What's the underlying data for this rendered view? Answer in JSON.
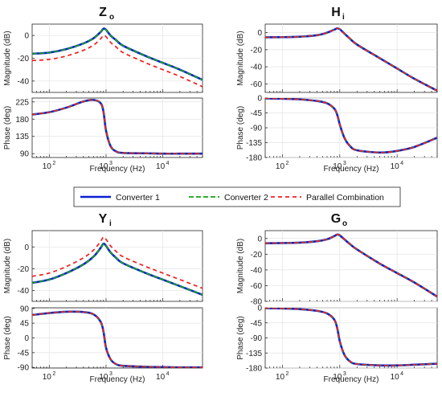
{
  "figure": {
    "legend": {
      "entries": [
        {
          "label": "Converter 1",
          "color": "#0a1fd6",
          "style": "solid"
        },
        {
          "label": "Converter 2",
          "color": "#16a316",
          "style": "dashed"
        },
        {
          "label": "Parallel Combination",
          "color": "#f02020",
          "style": "dashed"
        }
      ]
    }
  },
  "chart_data": [
    {
      "title": "Z",
      "title_sub": "o",
      "type": "line",
      "x_scale": "log",
      "x": [
        50,
        100,
        200,
        400,
        600,
        800,
        900,
        1000,
        1200,
        1500,
        2000,
        5000,
        10000,
        20000,
        50000
      ],
      "xlim": [
        50,
        50000
      ],
      "xlabel": "Frequency  (Hz)",
      "xticks": [
        100,
        1000,
        10000
      ],
      "magnitude": {
        "ylabel": "Magnitude (dB)",
        "ylim": [
          -50,
          10
        ],
        "yticks": [
          0,
          -20,
          -40
        ],
        "series": [
          {
            "name": "Converter 1",
            "values": [
              -16,
              -15,
              -12,
              -7,
              -2.5,
              3,
              6,
              5,
              0,
              -4,
              -9,
              -18,
              -24,
              -30,
              -39
            ]
          },
          {
            "name": "Converter 2",
            "values": [
              -16,
              -15,
              -12,
              -7,
              -2.5,
              3,
              6,
              5,
              0,
              -4,
              -9,
              -18,
              -24,
              -30,
              -39
            ]
          },
          {
            "name": "Parallel Combination",
            "values": [
              -22,
              -21,
              -18,
              -13,
              -8.5,
              -3,
              0,
              -1,
              -6,
              -10,
              -15,
              -24,
              -30,
              -36,
              -45
            ]
          }
        ]
      },
      "phase": {
        "ylabel": "Phase (deg)",
        "ylim": [
          80,
          235
        ],
        "yticks": [
          225,
          180,
          135,
          90
        ],
        "series": [
          {
            "name": "Converter 1",
            "values": [
              192,
              198,
              210,
              226,
              230,
              222,
              200,
              150,
              110,
              96,
              92,
              91,
              90,
              90,
              90
            ]
          },
          {
            "name": "Converter 2",
            "values": [
              192,
              198,
              210,
              226,
              230,
              222,
              200,
              150,
              110,
              96,
              92,
              91,
              90,
              90,
              90
            ]
          },
          {
            "name": "Parallel Combination",
            "values": [
              192,
              198,
              210,
              226,
              230,
              222,
              200,
              150,
              110,
              96,
              92,
              91,
              90,
              90,
              90
            ]
          }
        ]
      }
    },
    {
      "title": "H",
      "title_sub": "i",
      "type": "line",
      "x_scale": "log",
      "x": [
        50,
        100,
        200,
        400,
        600,
        800,
        900,
        1000,
        1200,
        1500,
        2000,
        5000,
        10000,
        20000,
        50000
      ],
      "xlim": [
        50,
        50000
      ],
      "xlabel": "Frequency  (Hz)",
      "xticks": [
        100,
        1000,
        10000
      ],
      "magnitude": {
        "ylabel": "Magnitude (dB)",
        "ylim": [
          -70,
          10
        ],
        "yticks": [
          0,
          -20,
          -40,
          -60
        ],
        "series": [
          {
            "name": "Converter 1",
            "values": [
              -5.5,
              -5.3,
              -4.8,
              -3,
              0,
              3.5,
              5,
              4,
              -1,
              -7,
              -14,
              -30,
              -42,
              -54,
              -68
            ]
          },
          {
            "name": "Converter 2",
            "values": [
              -5.5,
              -5.3,
              -4.8,
              -3,
              0,
              3.5,
              5,
              4,
              -1,
              -7,
              -14,
              -30,
              -42,
              -54,
              -68
            ]
          },
          {
            "name": "Parallel Combination",
            "values": [
              -5.5,
              -5.3,
              -4.8,
              -3,
              0,
              3.5,
              5,
              4,
              -1,
              -7,
              -14,
              -30,
              -42,
              -54,
              -68
            ]
          }
        ]
      },
      "phase": {
        "ylabel": "Phase (deg)",
        "ylim": [
          -180,
          0
        ],
        "yticks": [
          0,
          -45,
          -90,
          -135,
          -180
        ],
        "series": [
          {
            "name": "Converter 1",
            "values": [
              -1,
              -2,
              -4,
              -9,
              -16,
              -32,
              -50,
              -80,
              -120,
              -145,
              -158,
              -165,
              -160,
              -148,
              -120
            ]
          },
          {
            "name": "Converter 2",
            "values": [
              -1,
              -2,
              -4,
              -9,
              -16,
              -32,
              -50,
              -80,
              -120,
              -145,
              -158,
              -165,
              -160,
              -148,
              -120
            ]
          },
          {
            "name": "Parallel Combination",
            "values": [
              -1,
              -2,
              -4,
              -9,
              -16,
              -32,
              -50,
              -80,
              -120,
              -145,
              -158,
              -165,
              -160,
              -148,
              -120
            ]
          }
        ]
      }
    },
    {
      "title": "Y",
      "title_sub": "i",
      "type": "line",
      "x_scale": "log",
      "x": [
        50,
        100,
        200,
        400,
        600,
        800,
        900,
        1000,
        1200,
        1500,
        2000,
        5000,
        10000,
        20000,
        50000
      ],
      "xlim": [
        50,
        50000
      ],
      "xlabel": "Frequency  (Hz)",
      "xticks": [
        100,
        1000,
        10000
      ],
      "magnitude": {
        "ylabel": "Magnitude (dB)",
        "ylim": [
          -50,
          15
        ],
        "yticks": [
          0,
          -20,
          -40
        ],
        "series": [
          {
            "name": "Converter 1",
            "values": [
              -33,
              -30,
              -24,
              -16,
              -9,
              -1,
              3,
              1,
              -5,
              -10,
              -15,
              -24,
              -30,
              -36,
              -44
            ]
          },
          {
            "name": "Converter 2",
            "values": [
              -33,
              -30,
              -24,
              -16,
              -9,
              -1,
              3,
              1,
              -5,
              -10,
              -15,
              -24,
              -30,
              -36,
              -44
            ]
          },
          {
            "name": "Parallel Combination",
            "values": [
              -27,
              -24,
              -18,
              -10,
              -3,
              5,
              9,
              7,
              1,
              -4,
              -9,
              -18,
              -24,
              -30,
              -38
            ]
          }
        ]
      },
      "phase": {
        "ylabel": "Phase (deg)",
        "ylim": [
          -92,
          92
        ],
        "yticks": [
          90,
          45,
          0,
          -45,
          -90
        ],
        "series": [
          {
            "name": "Converter 1",
            "values": [
              70,
              76,
              80,
              79,
              72,
              50,
              20,
              -30,
              -65,
              -80,
              -85,
              -88,
              -89,
              -90,
              -90
            ]
          },
          {
            "name": "Converter 2",
            "values": [
              70,
              76,
              80,
              79,
              72,
              50,
              20,
              -30,
              -65,
              -80,
              -85,
              -88,
              -89,
              -90,
              -90
            ]
          },
          {
            "name": "Parallel Combination",
            "values": [
              70,
              76,
              80,
              79,
              72,
              50,
              20,
              -30,
              -65,
              -80,
              -85,
              -88,
              -89,
              -90,
              -90
            ]
          }
        ]
      }
    },
    {
      "title": "G",
      "title_sub": "o",
      "type": "line",
      "x_scale": "log",
      "x": [
        50,
        100,
        200,
        400,
        600,
        800,
        900,
        1000,
        1200,
        1500,
        2000,
        5000,
        10000,
        20000,
        50000
      ],
      "xlim": [
        50,
        50000
      ],
      "xlabel": "Frequency  (Hz)",
      "xticks": [
        100,
        1000,
        10000
      ],
      "magnitude": {
        "ylabel": "Magnitude (dB)",
        "ylim": [
          -80,
          10
        ],
        "yticks": [
          0,
          -20,
          -40,
          -60,
          -80
        ],
        "series": [
          {
            "name": "Converter 1",
            "values": [
              -6,
              -5.8,
              -5.3,
              -3.5,
              -1,
              3,
              5,
              4,
              -1,
              -7,
              -14,
              -32,
              -44,
              -56,
              -74
            ]
          },
          {
            "name": "Converter 2",
            "values": [
              -6,
              -5.8,
              -5.3,
              -3.5,
              -1,
              3,
              5,
              4,
              -1,
              -7,
              -14,
              -32,
              -44,
              -56,
              -74
            ]
          },
          {
            "name": "Parallel Combination",
            "values": [
              -6,
              -5.8,
              -5.3,
              -3.5,
              -1,
              3,
              5,
              4,
              -1,
              -7,
              -14,
              -32,
              -44,
              -56,
              -74
            ]
          }
        ]
      },
      "phase": {
        "ylabel": "Phase (deg)",
        "ylim": [
          -180,
          0
        ],
        "yticks": [
          0,
          -45,
          -90,
          -135,
          -180
        ],
        "series": [
          {
            "name": "Converter 1",
            "values": [
              -1,
              -2,
              -4,
              -9,
              -17,
              -35,
              -60,
              -100,
              -140,
              -160,
              -168,
              -172,
              -172,
              -170,
              -167
            ]
          },
          {
            "name": "Converter 2",
            "values": [
              -1,
              -2,
              -4,
              -9,
              -17,
              -35,
              -60,
              -100,
              -140,
              -160,
              -168,
              -172,
              -172,
              -170,
              -167
            ]
          },
          {
            "name": "Parallel Combination",
            "values": [
              -1,
              -2,
              -4,
              -9,
              -17,
              -35,
              -60,
              -100,
              -140,
              -160,
              -168,
              -172,
              -172,
              -170,
              -167
            ]
          }
        ]
      }
    }
  ]
}
